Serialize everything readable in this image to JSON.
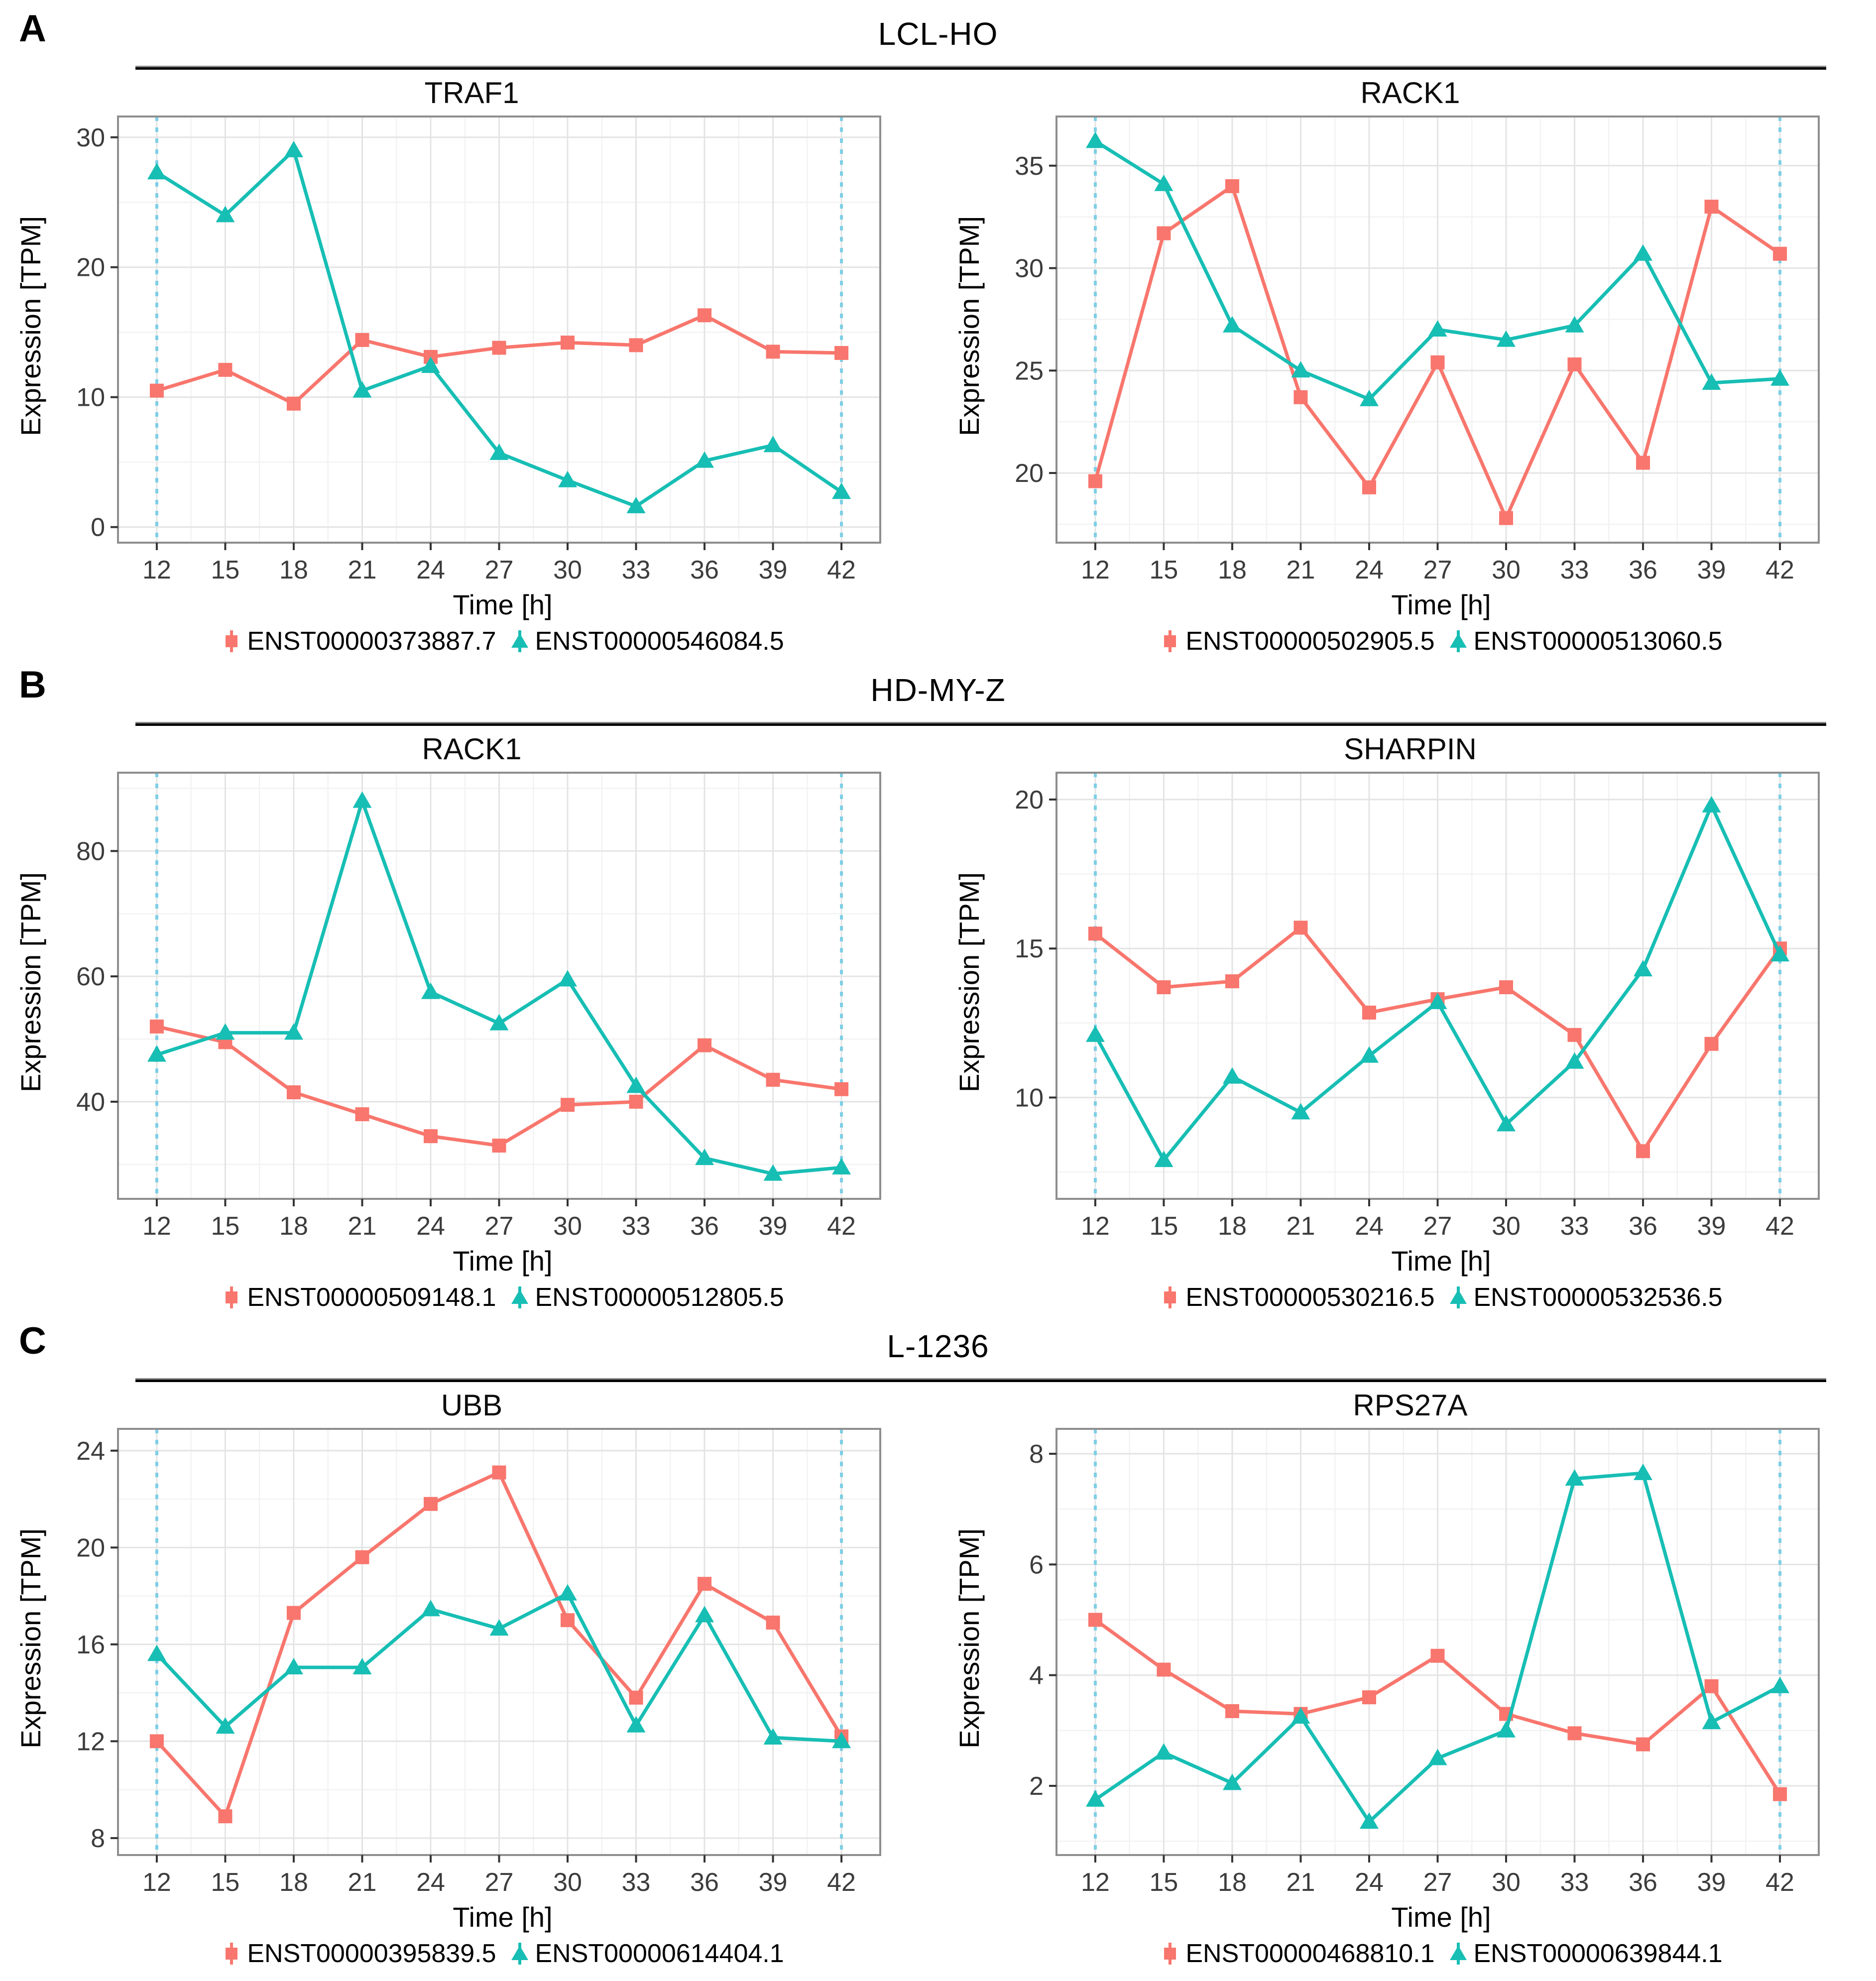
{
  "colors": {
    "series_red": "#F8766D",
    "series_teal": "#17BEB4",
    "vline_blue": "#7DCFE6",
    "grid_major": "#E4E4E4",
    "grid_minor": "#F2F2F2",
    "plot_border": "#8E8E8E",
    "tick_mark": "#333333",
    "tick_text": "#3C3C3C",
    "header_rule": "#000000"
  },
  "axes": {
    "x_label": "Time [h]",
    "y_label": "Expression [TPM]",
    "x_ticks": [
      12,
      15,
      18,
      21,
      24,
      27,
      30,
      33,
      36,
      39,
      42
    ],
    "xlim": [
      10.3,
      43.7
    ],
    "vlines": [
      12,
      42
    ]
  },
  "panels": [
    {
      "label": "A",
      "title": "LCL-HO",
      "chart_indexes": [
        0,
        1
      ]
    },
    {
      "label": "B",
      "title": "HD-MY-Z",
      "chart_indexes": [
        2,
        3
      ]
    },
    {
      "label": "C",
      "title": "L-1236",
      "chart_indexes": [
        4,
        5
      ]
    }
  ],
  "chart_data": [
    {
      "type": "line",
      "panel": "A",
      "title": "TRAF1",
      "xlabel": "Time [h]",
      "ylabel": "Expression [TPM]",
      "x": [
        12,
        15,
        18,
        21,
        24,
        27,
        30,
        33,
        36,
        39,
        42
      ],
      "y_ticks": [
        0,
        10,
        20,
        30
      ],
      "ylim": [
        -1.2,
        31.6
      ],
      "vlines": [
        12,
        42
      ],
      "legend_position": "bottom",
      "grid": true,
      "series": [
        {
          "name": "ENST00000373887.7",
          "color": "series_red",
          "marker": "square",
          "values": [
            10.5,
            12.1,
            9.5,
            14.4,
            13.1,
            13.8,
            14.2,
            14.0,
            16.3,
            13.5,
            13.4
          ]
        },
        {
          "name": "ENST00000546084.5",
          "color": "series_teal",
          "marker": "triangle",
          "values": [
            27.3,
            24.0,
            29.0,
            10.5,
            12.4,
            5.7,
            3.6,
            1.6,
            5.1,
            6.3,
            2.7
          ]
        }
      ]
    },
    {
      "type": "line",
      "panel": "A",
      "title": "RACK1",
      "xlabel": "Time [h]",
      "ylabel": "Expression [TPM]",
      "x": [
        12,
        15,
        18,
        21,
        24,
        27,
        30,
        33,
        36,
        39,
        42
      ],
      "y_ticks": [
        20,
        25,
        30,
        35
      ],
      "ylim": [
        16.6,
        37.4
      ],
      "vlines": [
        12,
        42
      ],
      "legend_position": "bottom",
      "grid": true,
      "series": [
        {
          "name": "ENST00000502905.5",
          "color": "series_red",
          "marker": "square",
          "values": [
            19.6,
            31.7,
            34.0,
            23.7,
            19.3,
            25.4,
            17.8,
            25.3,
            20.5,
            33.0,
            30.7
          ]
        },
        {
          "name": "ENST00000513060.5",
          "color": "series_teal",
          "marker": "triangle",
          "values": [
            36.2,
            34.1,
            27.2,
            25.0,
            23.6,
            27.0,
            26.5,
            27.2,
            30.7,
            24.4,
            24.6
          ]
        }
      ]
    },
    {
      "type": "line",
      "panel": "B",
      "title": "RACK1",
      "xlabel": "Time [h]",
      "ylabel": "Expression [TPM]",
      "x": [
        12,
        15,
        18,
        21,
        24,
        27,
        30,
        33,
        36,
        39,
        42
      ],
      "y_ticks": [
        40,
        60,
        80
      ],
      "ylim": [
        24.5,
        92.5
      ],
      "vlines": [
        12,
        42
      ],
      "legend_position": "bottom",
      "grid": true,
      "series": [
        {
          "name": "ENST00000509148.1",
          "color": "series_red",
          "marker": "square",
          "values": [
            52.0,
            49.5,
            41.5,
            38.0,
            34.5,
            33.0,
            39.5,
            40.0,
            49.0,
            43.5,
            42.0
          ]
        },
        {
          "name": "ENST00000512805.5",
          "color": "series_teal",
          "marker": "triangle",
          "values": [
            47.5,
            51.0,
            51.0,
            88.0,
            57.5,
            52.5,
            59.5,
            42.5,
            31.0,
            28.5,
            29.5
          ]
        }
      ]
    },
    {
      "type": "line",
      "panel": "B",
      "title": "SHARPIN",
      "xlabel": "Time [h]",
      "ylabel": "Expression [TPM]",
      "x": [
        12,
        15,
        18,
        21,
        24,
        27,
        30,
        33,
        36,
        39,
        42
      ],
      "y_ticks": [
        10,
        15,
        20
      ],
      "ylim": [
        6.6,
        20.9
      ],
      "vlines": [
        12,
        42
      ],
      "legend_position": "bottom",
      "grid": true,
      "series": [
        {
          "name": "ENST00000530216.5",
          "color": "series_red",
          "marker": "square",
          "values": [
            15.5,
            13.7,
            13.9,
            15.7,
            12.85,
            13.3,
            13.7,
            12.1,
            8.2,
            11.8,
            15.0
          ]
        },
        {
          "name": "ENST00000532536.5",
          "color": "series_teal",
          "marker": "triangle",
          "values": [
            12.1,
            7.9,
            10.7,
            9.5,
            11.4,
            13.2,
            9.1,
            11.2,
            14.3,
            19.8,
            14.8
          ]
        }
      ]
    },
    {
      "type": "line",
      "panel": "C",
      "title": "UBB",
      "xlabel": "Time [h]",
      "ylabel": "Expression [TPM]",
      "x": [
        12,
        15,
        18,
        21,
        24,
        27,
        30,
        33,
        36,
        39,
        42
      ],
      "y_ticks": [
        8,
        12,
        16,
        20,
        24
      ],
      "ylim": [
        7.3,
        24.9
      ],
      "vlines": [
        12,
        42
      ],
      "legend_position": "bottom",
      "grid": true,
      "series": [
        {
          "name": "ENST00000395839.5",
          "color": "series_red",
          "marker": "square",
          "values": [
            12.0,
            8.9,
            17.3,
            19.6,
            21.8,
            23.1,
            17.0,
            13.8,
            18.5,
            16.9,
            12.2
          ]
        },
        {
          "name": "ENST00000614404.1",
          "color": "series_teal",
          "marker": "triangle",
          "values": [
            15.6,
            12.6,
            15.05,
            15.05,
            17.45,
            16.65,
            18.1,
            12.65,
            17.2,
            12.15,
            12.0
          ]
        }
      ]
    },
    {
      "type": "line",
      "panel": "C",
      "title": "RPS27A",
      "xlabel": "Time [h]",
      "ylabel": "Expression [TPM]",
      "x": [
        12,
        15,
        18,
        21,
        24,
        27,
        30,
        33,
        36,
        39,
        42
      ],
      "y_ticks": [
        2,
        4,
        6,
        8
      ],
      "ylim": [
        0.75,
        8.45
      ],
      "vlines": [
        12,
        42
      ],
      "legend_position": "bottom",
      "grid": true,
      "series": [
        {
          "name": "ENST00000468810.1",
          "color": "series_red",
          "marker": "square",
          "values": [
            5.0,
            4.1,
            3.35,
            3.3,
            3.6,
            4.35,
            3.3,
            2.95,
            2.75,
            3.8,
            1.85
          ]
        },
        {
          "name": "ENST00000639844.1",
          "color": "series_teal",
          "marker": "triangle",
          "values": [
            1.75,
            2.6,
            2.05,
            3.25,
            1.35,
            2.5,
            3.0,
            7.55,
            7.65,
            3.15,
            3.8
          ]
        }
      ]
    }
  ]
}
